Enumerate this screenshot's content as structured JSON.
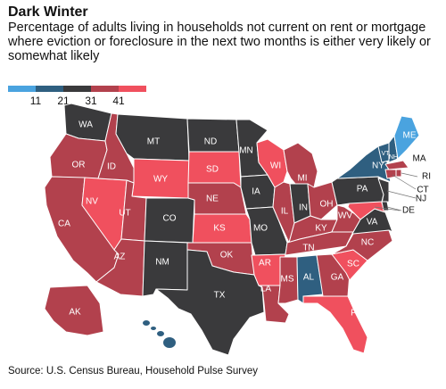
{
  "title": "Dark Winter",
  "subtitle": "Percentage of adults living in households not current on rent or mortgage where eviction or foreclosure in the next two months is either very likely or somewhat likely",
  "legend": {
    "ticks": [
      "11",
      "21",
      "31",
      "41"
    ],
    "colors": [
      "#4aa3df",
      "#2f5f80",
      "#3a3a3c",
      "#b2414d",
      "#f0505e"
    ]
  },
  "source": "Source: U.S. Census Bureau, Household Pulse Survey",
  "states": {
    "WA": "WA",
    "OR": "OR",
    "CA": "CA",
    "ID": "ID",
    "NV": "NV",
    "MT": "MT",
    "WY": "WY",
    "UT": "UT",
    "AZ": "AZ",
    "CO": "CO",
    "NM": "NM",
    "ND": "ND",
    "SD": "SD",
    "NE": "NE",
    "KS": "KS",
    "OK": "OK",
    "TX": "TX",
    "MN": "MN",
    "IA": "IA",
    "MO": "MO",
    "AR": "AR",
    "LA": "LA",
    "WI": "WI",
    "IL": "IL",
    "MI": "MI",
    "IN": "IN",
    "OH": "OH",
    "KY": "KY",
    "TN": "TN",
    "MS": "MS",
    "AL": "AL",
    "GA": "GA",
    "FL": "FL",
    "SC": "SC",
    "NC": "NC",
    "VA": "VA",
    "WV": "WV",
    "PA": "PA",
    "NY": "NY",
    "ME": "ME",
    "VT": "VT",
    "NH": "NH",
    "MA": "MA",
    "RI": "RI",
    "CT": "CT",
    "NJ": "NJ",
    "DE": "DE",
    "AK": "AK"
  }
}
